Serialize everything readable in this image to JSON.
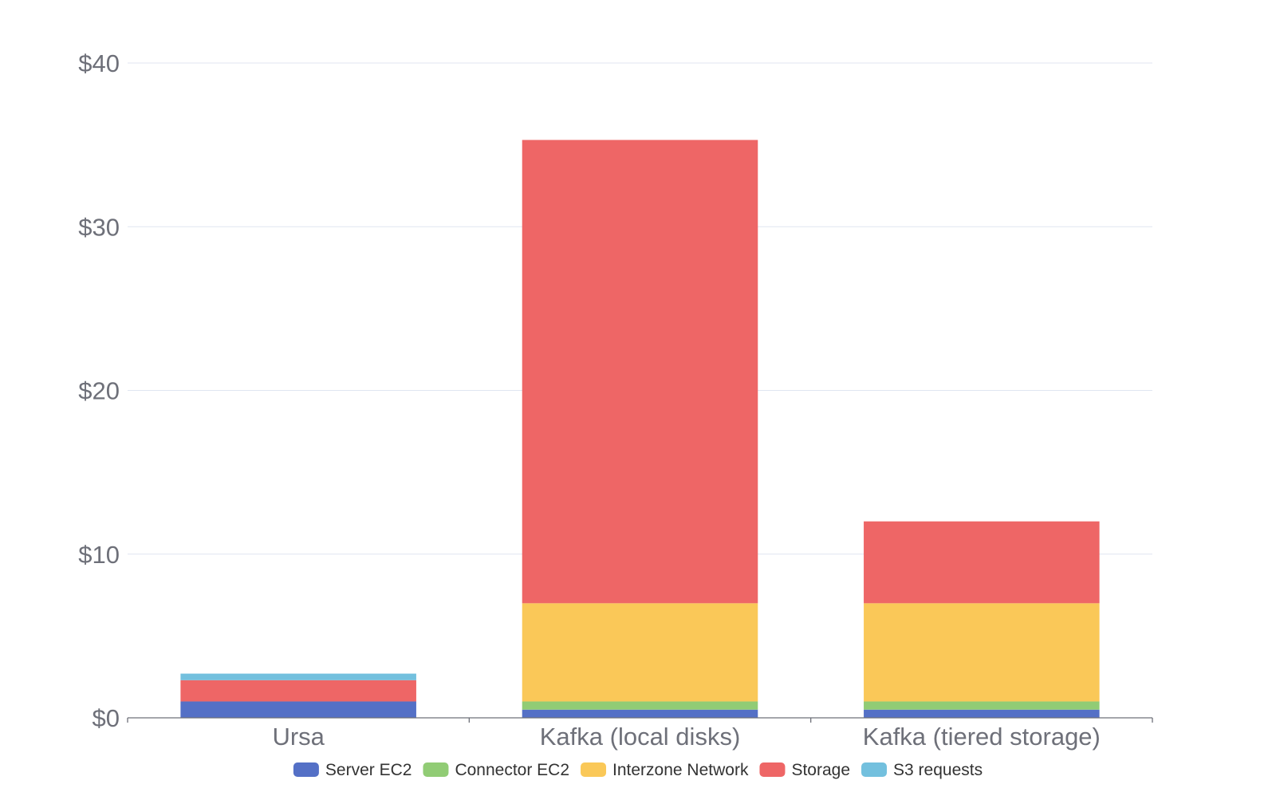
{
  "chart_data": {
    "type": "bar",
    "stacked": true,
    "categories": [
      "Ursa",
      "Kafka (local disks)",
      "Kafka (tiered storage)"
    ],
    "series": [
      {
        "name": "Server EC2",
        "color": "#5470c6",
        "values": [
          1.0,
          0.5,
          0.5
        ]
      },
      {
        "name": "Connector EC2",
        "color": "#91cc75",
        "values": [
          0.0,
          0.5,
          0.5
        ]
      },
      {
        "name": "Interzone Network",
        "color": "#fac858",
        "values": [
          0.0,
          6.0,
          6.0
        ]
      },
      {
        "name": "Storage",
        "color": "#ee6666",
        "values": [
          1.3,
          28.3,
          5.0
        ]
      },
      {
        "name": "S3 requests",
        "color": "#73c0de",
        "values": [
          0.4,
          0.0,
          0.0
        ]
      }
    ],
    "ylim": [
      0,
      40
    ],
    "yticks": [
      0,
      10,
      20,
      30,
      40
    ],
    "ytick_labels": [
      "$0",
      "$10",
      "$20",
      "$30",
      "$40"
    ],
    "title": "",
    "xlabel": "",
    "ylabel": "",
    "grid": true,
    "legend_position": "bottom"
  }
}
